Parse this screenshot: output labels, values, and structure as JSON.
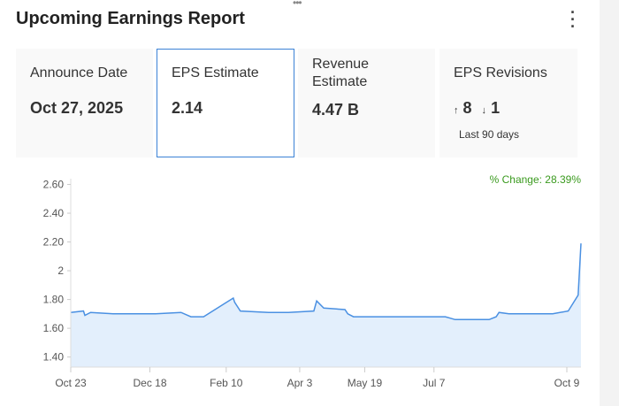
{
  "header": {
    "title": "Upcoming Earnings Report",
    "menu_icon": "kebab-menu-icon",
    "drag_icon": "drag-handle-icon"
  },
  "cards": [
    {
      "label": "Announce Date",
      "value": "Oct 27, 2025"
    },
    {
      "label": "EPS Estimate",
      "value": "2.14",
      "selected": true
    },
    {
      "label_line1": "Revenue",
      "label_line2": "Estimate",
      "value": "4.47 B"
    },
    {
      "label": "EPS Revisions",
      "up": "8",
      "down": "1",
      "up_icon": "arrow-up-icon",
      "down_icon": "arrow-down-icon",
      "note": "Last 90 days"
    }
  ],
  "colors": {
    "accent": "#3b82d6",
    "line": "#4a90e2",
    "fill": "#e3effc",
    "change": "#3a9a1e"
  },
  "chart_data": {
    "type": "area",
    "annotation": "% Change: 28.39%",
    "xlim": [
      "2024-10-23",
      "2025-10-19"
    ],
    "ylim": [
      1.33,
      2.64
    ],
    "grid": false,
    "x_ticks": [
      {
        "date": "2024-10-23",
        "label": "Oct 23"
      },
      {
        "date": "2024-12-18",
        "label": "Dec 18"
      },
      {
        "date": "2025-02-10",
        "label": "Feb 10"
      },
      {
        "date": "2025-04-03",
        "label": "Apr 3"
      },
      {
        "date": "2025-05-19",
        "label": "May 19"
      },
      {
        "date": "2025-07-07",
        "label": "Jul 7"
      },
      {
        "date": "2025-10-09",
        "label": "Oct 9"
      }
    ],
    "y_ticks": [
      {
        "v": 2.6,
        "label": "2.60"
      },
      {
        "v": 2.4,
        "label": "2.40"
      },
      {
        "v": 2.2,
        "label": "2.20"
      },
      {
        "v": 2.0,
        "label": "2"
      },
      {
        "v": 1.8,
        "label": "1.80"
      },
      {
        "v": 1.6,
        "label": "1.60"
      },
      {
        "v": 1.4,
        "label": "1.40"
      }
    ],
    "points": [
      [
        "2024-10-23",
        1.71
      ],
      [
        "2024-11-01",
        1.72
      ],
      [
        "2024-11-02",
        1.69
      ],
      [
        "2024-11-06",
        1.71
      ],
      [
        "2024-11-22",
        1.7
      ],
      [
        "2024-12-21",
        1.7
      ],
      [
        "2024-12-22",
        1.7
      ],
      [
        "2025-01-09",
        1.71
      ],
      [
        "2025-01-16",
        1.68
      ],
      [
        "2025-01-25",
        1.68
      ],
      [
        "2025-02-15",
        1.81
      ],
      [
        "2025-02-16",
        1.78
      ],
      [
        "2025-02-20",
        1.72
      ],
      [
        "2025-03-12",
        1.71
      ],
      [
        "2025-03-26",
        1.71
      ],
      [
        "2025-04-13",
        1.72
      ],
      [
        "2025-04-15",
        1.79
      ],
      [
        "2025-04-20",
        1.74
      ],
      [
        "2025-05-05",
        1.73
      ],
      [
        "2025-05-07",
        1.7
      ],
      [
        "2025-05-11",
        1.68
      ],
      [
        "2025-07-15",
        1.68
      ],
      [
        "2025-07-22",
        1.66
      ],
      [
        "2025-08-15",
        1.66
      ],
      [
        "2025-08-20",
        1.68
      ],
      [
        "2025-08-22",
        1.71
      ],
      [
        "2025-08-29",
        1.7
      ],
      [
        "2025-09-29",
        1.7
      ],
      [
        "2025-10-10",
        1.72
      ],
      [
        "2025-10-17",
        1.83
      ],
      [
        "2025-10-19",
        2.19
      ]
    ]
  }
}
